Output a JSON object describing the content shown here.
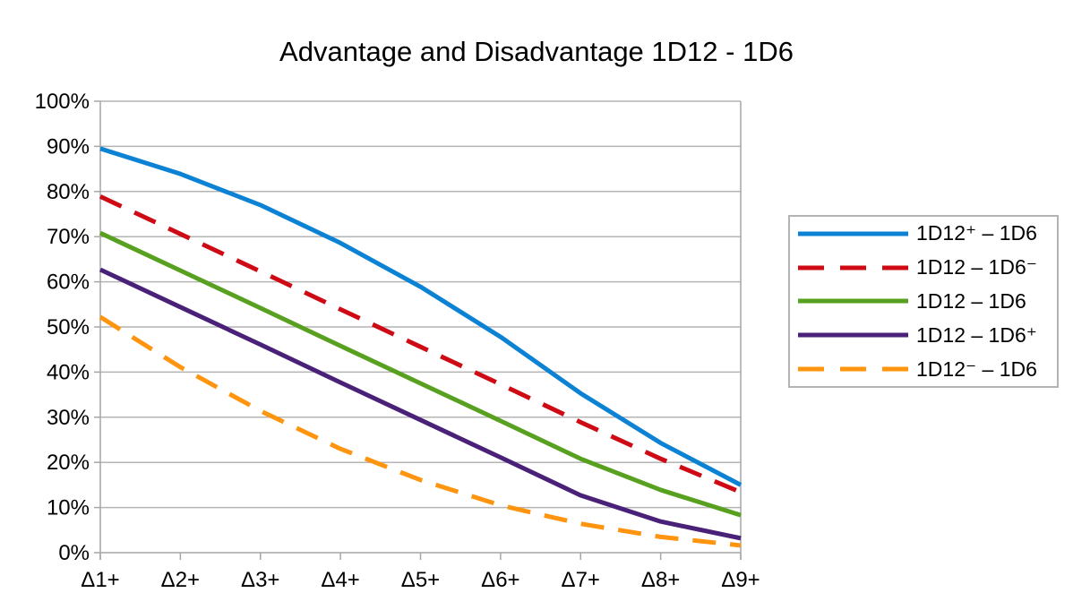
{
  "chart_data": {
    "type": "line",
    "title": "Advantage and Disadvantage 1D12 - 1D6",
    "xlabel": "",
    "ylabel": "",
    "categories": [
      "Δ1+",
      "Δ2+",
      "Δ3+",
      "Δ4+",
      "Δ5+",
      "Δ6+",
      "Δ7+",
      "Δ8+",
      "Δ9+"
    ],
    "y_tick_labels": [
      "0%",
      "10%",
      "20%",
      "30%",
      "40%",
      "50%",
      "60%",
      "70%",
      "80%",
      "90%",
      "100%"
    ],
    "ylim": [
      0,
      100
    ],
    "y_step": 10,
    "grid": "horizontal",
    "legend_position": "right",
    "series": [
      {
        "name": "1D12⁺ – 1D6",
        "color": "#0c82d4",
        "dashed": false,
        "values": [
          89.5,
          83.9,
          77.0,
          68.6,
          58.9,
          47.8,
          35.3,
          24.3,
          15.0
        ]
      },
      {
        "name": "1D12 – 1D6⁻",
        "color": "#ce0b14",
        "dashed": true,
        "values": [
          78.9,
          70.6,
          62.3,
          53.9,
          45.6,
          37.3,
          28.9,
          20.8,
          13.4
        ]
      },
      {
        "name": "1D12 – 1D6",
        "color": "#58a01f",
        "dashed": false,
        "values": [
          70.8,
          62.5,
          54.2,
          45.8,
          37.5,
          29.2,
          20.8,
          13.9,
          8.3
        ]
      },
      {
        "name": "1D12 – 1D6⁺",
        "color": "#4a2178",
        "dashed": false,
        "values": [
          62.7,
          54.4,
          46.1,
          37.7,
          29.4,
          21.1,
          12.7,
          6.9,
          3.2
        ]
      },
      {
        "name": "1D12⁻ – 1D6",
        "color": "#ff940e",
        "dashed": true,
        "values": [
          52.2,
          41.1,
          31.4,
          23.0,
          16.1,
          10.5,
          6.4,
          3.5,
          1.6
        ]
      }
    ]
  },
  "colors": {
    "background": "#ffffff",
    "gridline": "#b4b4b4",
    "axis": "#a6a6a6",
    "legend_border": "#b3b3b3",
    "text": "#000000"
  }
}
